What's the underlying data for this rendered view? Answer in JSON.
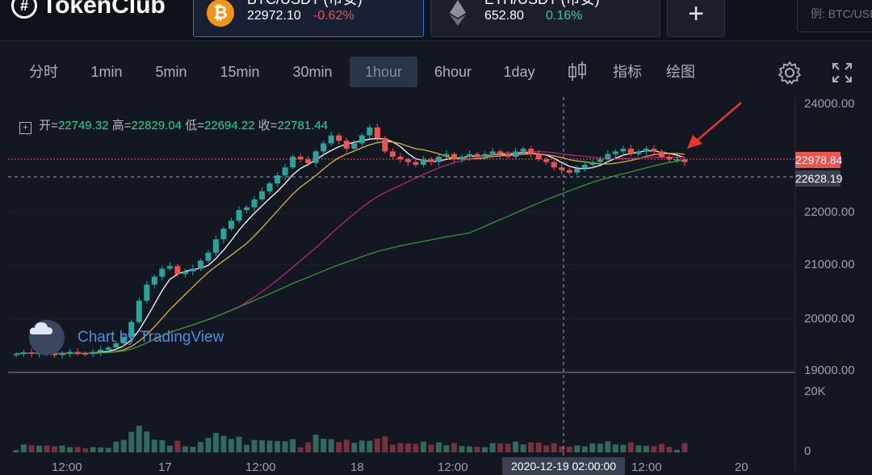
{
  "header": {
    "logo_text": "TokenClub",
    "tickers": [
      {
        "pair": "BTC/USDT (币安)",
        "price": "22972.10",
        "change": "-0.62%",
        "change_color": "#f04a62",
        "icon": "bitcoin-icon"
      },
      {
        "pair": "ETH/USDT (币安)",
        "price": "652.80",
        "change": "0.16%",
        "change_color": "#26d39a",
        "icon": "ethereum-icon"
      }
    ],
    "add_label": "+",
    "search_placeholder": "例: BTC/USDT"
  },
  "toolbar": {
    "intervals": [
      "分时",
      "1min",
      "5min",
      "15min",
      "30min",
      "1hour",
      "6hour",
      "1day"
    ],
    "active_interval": "1hour",
    "indicators_label": "指标",
    "draw_label": "绘图"
  },
  "chart": {
    "ohlc": {
      "open_label": "开=",
      "open": "22749.32",
      "high_label": "高=",
      "high": "22829.04",
      "low_label": "低=",
      "low": "22694.22",
      "close_label": "收=",
      "close": "22781.44"
    },
    "price_axis": [
      "24000.00",
      "22000.00",
      "21000.00",
      "20000.00",
      "19000.00"
    ],
    "current_price_tag": "22978.84",
    "crosshair_price_tag": "22628.19",
    "volume_axis": [
      "20K",
      "0"
    ],
    "time_axis": [
      "12:00",
      "17",
      "12:00",
      "18",
      "12:00",
      "12:00",
      "20"
    ],
    "crosshair_time": "2020-12-19 02:00:00",
    "watermark": "Chart by TradingView",
    "colors": {
      "up": "#26a69a",
      "down": "#ef5350",
      "ma_fast": "#ffffff",
      "ma_mid": "#d4b33a",
      "ma_slow": "#b0287a",
      "ma_long": "#2f9a2f"
    }
  },
  "chart_data": {
    "type": "candlestick",
    "pair": "BTC/USDT",
    "interval": "1hour",
    "ylim": [
      19000,
      24000
    ],
    "close": [
      19300,
      19330,
      19310,
      19330,
      19300,
      19280,
      19320,
      19340,
      19310,
      19300,
      19340,
      19380,
      19420,
      19500,
      19620,
      19900,
      20300,
      20600,
      20750,
      20900,
      20950,
      20800,
      20850,
      20900,
      21050,
      21200,
      21450,
      21650,
      21800,
      22000,
      22050,
      22200,
      22350,
      22500,
      22650,
      22800,
      23000,
      22950,
      22880,
      23100,
      23250,
      23400,
      23300,
      23150,
      23250,
      23400,
      23550,
      23350,
      23100,
      23000,
      22950,
      22900,
      22850,
      22950,
      22900,
      23000,
      23050,
      22950,
      23000,
      23050,
      23000,
      23050,
      23100,
      23050,
      23000,
      23100,
      23150,
      23050,
      22950,
      22900,
      22800,
      22750,
      22700,
      22780,
      22850,
      22900,
      22950,
      23050,
      23100,
      23150,
      23050,
      23100,
      23150,
      23100,
      23000,
      22950,
      22950,
      22900
    ],
    "volume_max_label": "20K"
  }
}
